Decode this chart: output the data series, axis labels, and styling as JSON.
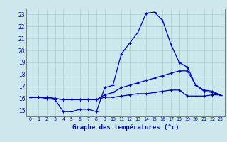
{
  "title": "Graphe des températures (°c)",
  "x_hours": [
    0,
    1,
    2,
    3,
    4,
    5,
    6,
    7,
    8,
    9,
    10,
    11,
    12,
    13,
    14,
    15,
    16,
    17,
    18,
    19,
    20,
    21,
    22,
    23
  ],
  "line1": [
    16.1,
    16.1,
    16.0,
    15.9,
    14.9,
    14.9,
    15.1,
    15.1,
    14.9,
    16.9,
    17.1,
    19.7,
    20.6,
    21.5,
    23.1,
    23.2,
    22.5,
    20.5,
    19.0,
    18.6,
    17.1,
    16.6,
    16.5,
    16.3
  ],
  "line2": [
    16.1,
    16.1,
    16.1,
    16.0,
    15.9,
    15.9,
    15.9,
    15.9,
    15.9,
    16.3,
    16.5,
    16.9,
    17.1,
    17.3,
    17.5,
    17.7,
    17.9,
    18.1,
    18.3,
    18.3,
    17.1,
    16.7,
    16.6,
    16.3
  ],
  "line3": [
    16.1,
    16.1,
    16.1,
    16.0,
    15.9,
    15.9,
    15.9,
    15.9,
    15.9,
    16.1,
    16.1,
    16.2,
    16.3,
    16.4,
    16.4,
    16.5,
    16.6,
    16.7,
    16.7,
    16.2,
    16.2,
    16.2,
    16.3,
    16.3
  ],
  "ylim": [
    14.5,
    23.5
  ],
  "yticks": [
    15,
    16,
    17,
    18,
    19,
    20,
    21,
    22,
    23
  ],
  "bg_color": "#cce8ec",
  "line_color": "#0000bb",
  "grid_color": "#aacccc",
  "axis_color": "#555555"
}
